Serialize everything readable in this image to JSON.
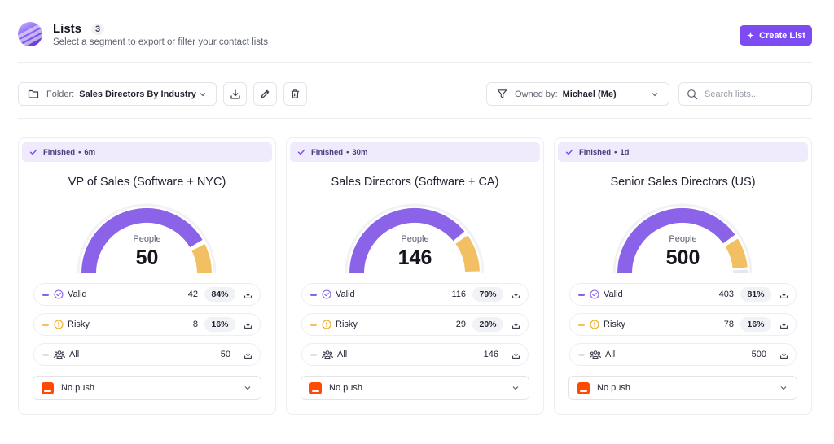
{
  "header": {
    "title": "Lists",
    "count": "3",
    "subtitle": "Select a segment to export or filter your contact lists",
    "create_label": "Create List"
  },
  "toolbar": {
    "folder_label": "Folder:",
    "folder_value": "Sales Directors By Industry",
    "owner_label": "Owned by:",
    "owner_value": "Michael (Me)",
    "search_placeholder": "Search lists..."
  },
  "colors": {
    "accent": "#7c4cf2",
    "valid": "#8a63e8",
    "risky": "#f2c063",
    "remaining": "#e6e7eb"
  },
  "icons": [
    "folder-icon",
    "chevron-down-icon",
    "download-icon",
    "pencil-icon",
    "trash-icon",
    "filter-icon",
    "search-icon",
    "check-icon",
    "check-circle-icon",
    "warning-icon",
    "people-icon",
    "zapier-icon",
    "sparkle-icon"
  ],
  "cards": [
    {
      "status": "Finished",
      "age": "6m",
      "title": "VP of Sales (Software + NYC)",
      "people_label": "People",
      "people": "50",
      "valid": {
        "label": "Valid",
        "count": "42",
        "pct": "84%",
        "fraction": 0.84
      },
      "risky": {
        "label": "Risky",
        "count": "8",
        "pct": "16%",
        "fraction": 0.16
      },
      "all": {
        "label": "All",
        "count": "50"
      },
      "push": "No push"
    },
    {
      "status": "Finished",
      "age": "30m",
      "title": "Sales Directors (Software + CA)",
      "people_label": "People",
      "people": "146",
      "valid": {
        "label": "Valid",
        "count": "116",
        "pct": "79%",
        "fraction": 0.79
      },
      "risky": {
        "label": "Risky",
        "count": "29",
        "pct": "20%",
        "fraction": 0.2
      },
      "all": {
        "label": "All",
        "count": "146"
      },
      "push": "No push"
    },
    {
      "status": "Finished",
      "age": "1d",
      "title": "Senior Sales Directors (US)",
      "people_label": "People",
      "people": "500",
      "valid": {
        "label": "Valid",
        "count": "403",
        "pct": "81%",
        "fraction": 0.81
      },
      "risky": {
        "label": "Risky",
        "count": "78",
        "pct": "16%",
        "fraction": 0.16
      },
      "all": {
        "label": "All",
        "count": "500"
      },
      "push": "No push"
    }
  ]
}
